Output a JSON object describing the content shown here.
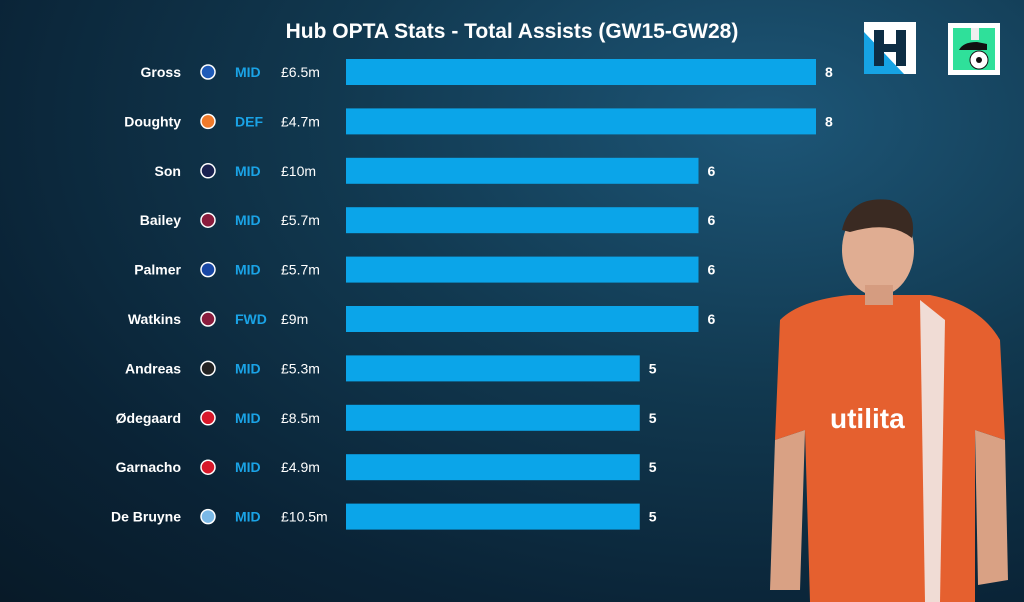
{
  "chart_data": {
    "type": "bar",
    "title": "Hub OPTA Stats - Total Assists (GW15-GW28)",
    "categories": [
      "Gross",
      "Doughty",
      "Son",
      "Bailey",
      "Palmer",
      "Watkins",
      "Andreas",
      "Ødegaard",
      "Garnacho",
      "De Bruyne"
    ],
    "positions": [
      "MID",
      "DEF",
      "MID",
      "MID",
      "MID",
      "FWD",
      "MID",
      "MID",
      "MID",
      "MID"
    ],
    "prices": [
      "£6.5m",
      "£4.7m",
      "£10m",
      "£5.7m",
      "£5.7m",
      "£9m",
      "£5.3m",
      "£8.5m",
      "£4.9m",
      "£10.5m"
    ],
    "clubs": [
      "brighton",
      "luton",
      "tottenham",
      "aston-villa",
      "chelsea",
      "aston-villa",
      "fulham",
      "arsenal",
      "man-utd",
      "man-city"
    ],
    "values": [
      8,
      8,
      6,
      6,
      6,
      6,
      5,
      5,
      5,
      5
    ],
    "xlim": [
      0,
      8
    ],
    "orientation": "horizontal",
    "grid": false
  },
  "colors": {
    "bar": "#0ba5e9",
    "position": "#1aa3e6",
    "bg": "#0f3249"
  }
}
